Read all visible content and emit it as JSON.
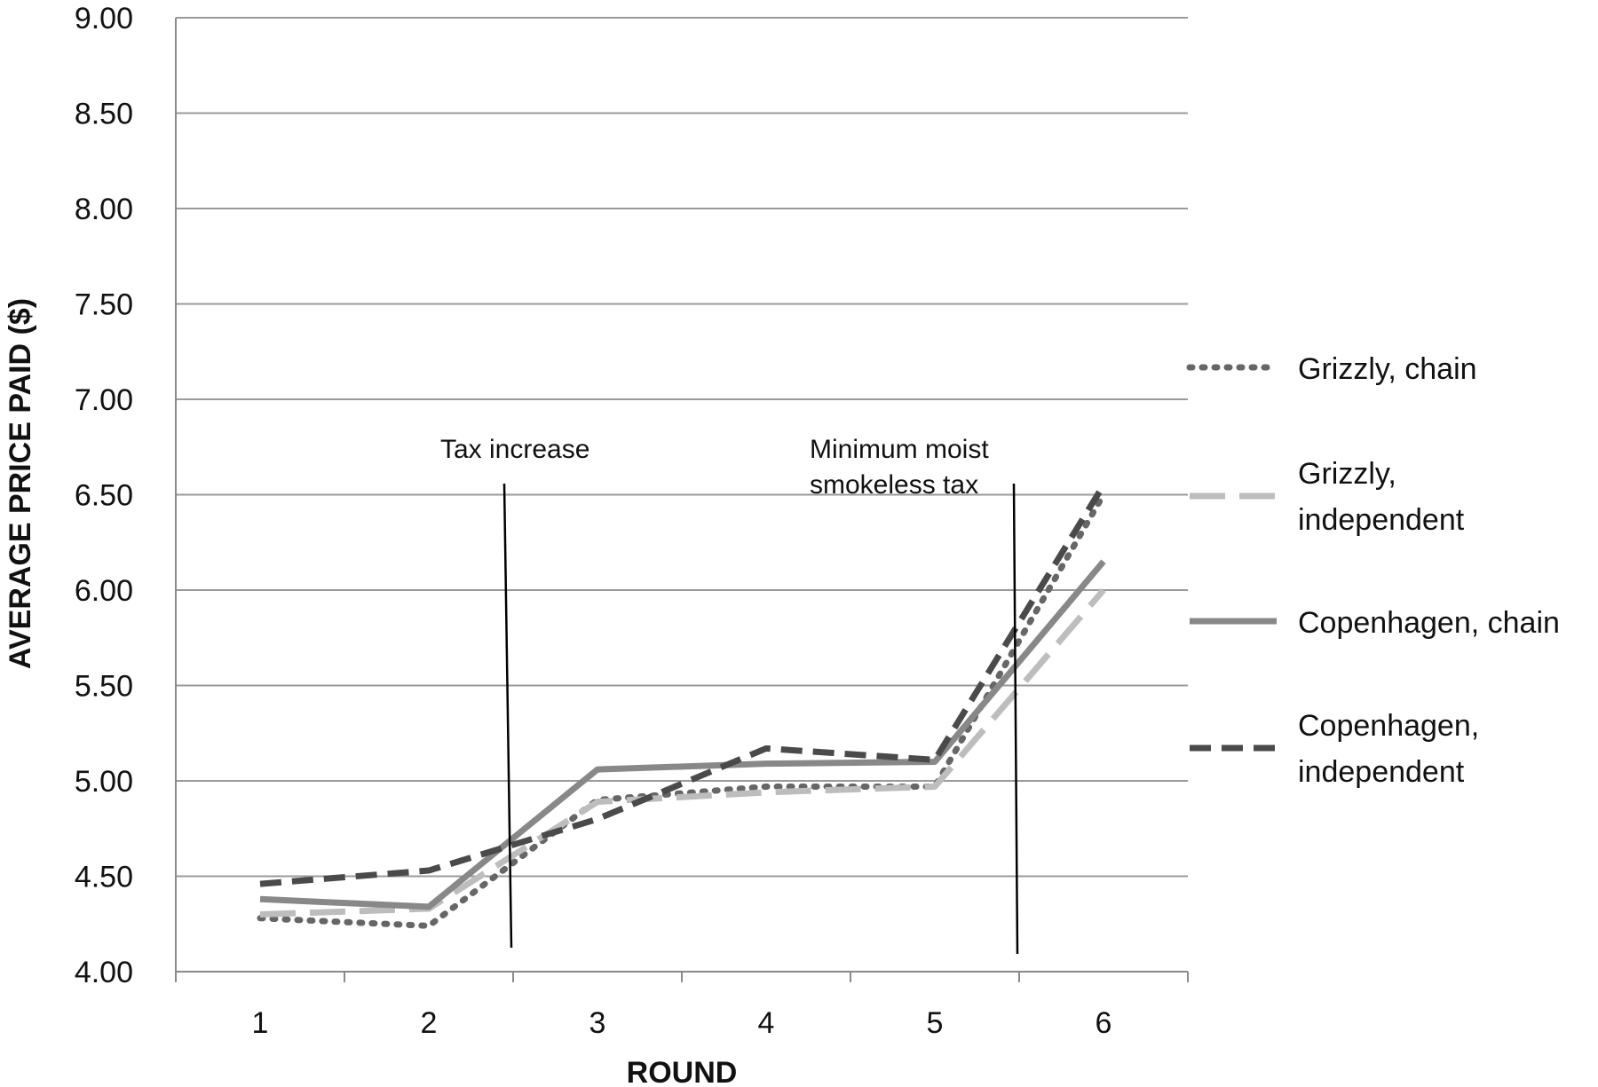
{
  "chart_data": {
    "type": "line",
    "xlabel": "ROUND",
    "ylabel": "AVERAGE PRICE PAID ($)",
    "ylim": [
      4.0,
      9.0
    ],
    "yticks": [
      "4.00",
      "4.50",
      "5.00",
      "5.50",
      "6.00",
      "6.50",
      "7.00",
      "7.50",
      "8.00",
      "8.50",
      "9.00"
    ],
    "categories": [
      "1",
      "2",
      "3",
      "4",
      "5",
      "6"
    ],
    "grid": true,
    "legend_position": "right",
    "series": [
      {
        "name": "Grizzly, chain",
        "style": "dotted",
        "color": "#666666",
        "values": [
          4.28,
          4.24,
          4.9,
          4.97,
          4.97,
          6.5
        ]
      },
      {
        "name": "Grizzly, independent",
        "style": "long-dash",
        "color": "#bdbdbd",
        "values": [
          4.3,
          4.33,
          4.89,
          4.94,
          4.97,
          6.0
        ]
      },
      {
        "name": "Copenhagen, chain",
        "style": "solid",
        "color": "#888888",
        "values": [
          4.38,
          4.34,
          5.06,
          5.09,
          5.1,
          6.15
        ]
      },
      {
        "name": "Copenhagen, independent",
        "style": "dashed",
        "color": "#4a4a4a",
        "values": [
          4.46,
          4.53,
          4.8,
          5.17,
          5.11,
          6.55
        ]
      }
    ],
    "annotations": [
      {
        "lines": [
          "Tax increase"
        ],
        "between": [
          2,
          3
        ]
      },
      {
        "lines": [
          "Minimum moist",
          "smokeless tax"
        ],
        "between": [
          5,
          6
        ]
      }
    ],
    "legend": [
      {
        "lines": [
          "Grizzly, chain"
        ]
      },
      {
        "lines": [
          "Grizzly,",
          "independent"
        ]
      },
      {
        "lines": [
          "Copenhagen, chain"
        ]
      },
      {
        "lines": [
          "Copenhagen,",
          "independent"
        ]
      }
    ]
  }
}
